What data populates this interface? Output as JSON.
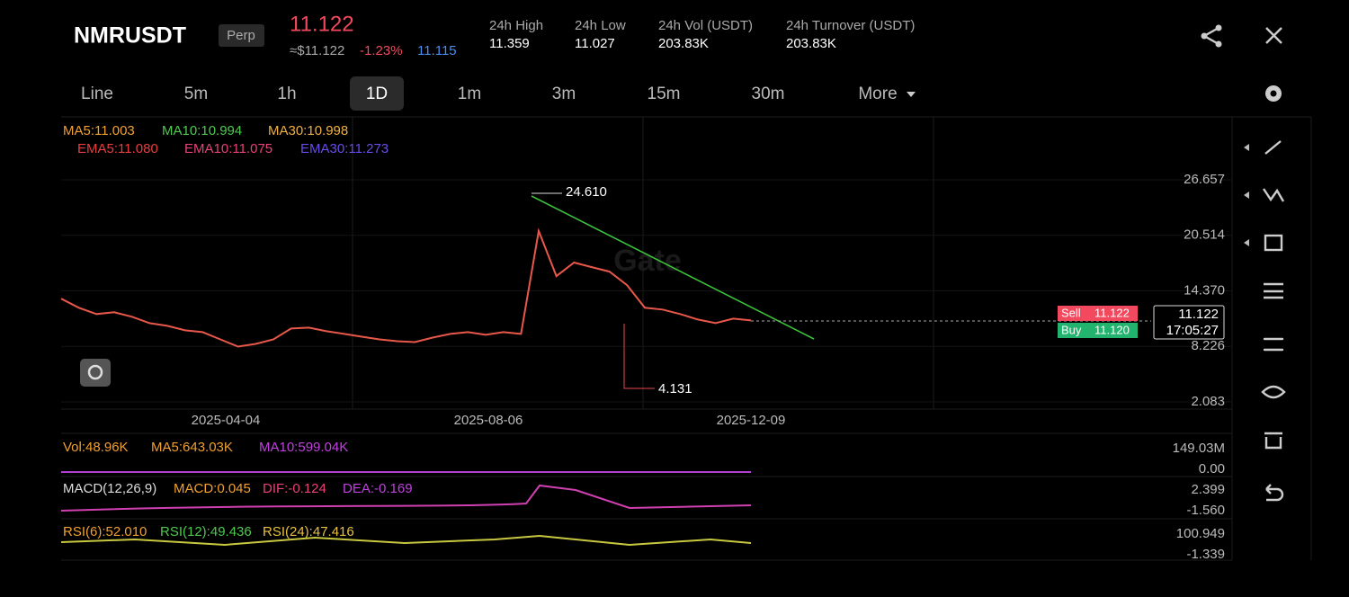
{
  "header": {
    "symbol": "NMRUSDT",
    "badge": "Perp",
    "last_price": "11.122",
    "approx": "≈$11.122",
    "change": "-1.23%",
    "mark_price": "11.115",
    "stats": [
      {
        "label": "24h High",
        "value": "11.359"
      },
      {
        "label": "24h Low",
        "value": "11.027"
      },
      {
        "label": "24h Vol (USDT)",
        "value": "203.83K"
      },
      {
        "label": "24h Turnover (USDT)",
        "value": "203.83K"
      }
    ]
  },
  "timeframes": [
    "Line",
    "5m",
    "1h",
    "1D",
    "1m",
    "3m",
    "15m",
    "30m",
    "More"
  ],
  "indicators": {
    "ma": [
      "MA5:11.003",
      "MA10:10.994",
      "MA30:10.998"
    ],
    "ema": [
      "EMA5:11.080",
      "EMA10:11.075",
      "EMA30:11.273"
    ]
  },
  "chart": {
    "yticks": [
      26.657,
      20.514,
      {
        "value": 14.37,
        "label": "14.370"
      },
      8.226,
      2.083
    ],
    "xlabels": [
      "2025-04-04",
      "2025-08-06",
      "2025-12-09"
    ],
    "high": "24.610",
    "low": "4.131",
    "watermark": "Gate",
    "close": [
      13.5,
      12.5,
      11.8,
      12,
      11.5,
      10.8,
      10.5,
      10,
      9.8,
      9,
      8.2,
      8.5,
      9,
      10.2,
      10.3,
      9.9,
      9.6,
      9.3,
      9,
      8.8,
      8.7,
      9.2,
      9.6,
      9.8,
      9.5,
      9.8,
      9.6,
      21,
      16,
      17.5,
      17,
      16.5,
      15,
      12.5,
      12.3,
      11.8,
      11.2,
      10.8,
      11.3,
      11.1
    ],
    "sell": {
      "label": "Sell",
      "price": "11.122"
    },
    "buy": {
      "label": "Buy",
      "price": "11.120"
    },
    "current": "11.122",
    "countdown": "17:05:27"
  },
  "panels": {
    "vol": {
      "labels": [
        "Vol:48.96K",
        "MA5:643.03K",
        "MA10:599.04K"
      ],
      "axis": [
        "149.03M",
        "0.00"
      ]
    },
    "macd": {
      "labels": [
        "MACD(12,26,9)",
        "MACD:0.045",
        "DIF:-0.124",
        "DEA:-0.169"
      ],
      "axis": [
        "2.399",
        "-1.560"
      ]
    },
    "rsi": {
      "labels": [
        "RSI(6):52.010",
        "RSI(12):49.436",
        "RSI(24):47.416"
      ],
      "axis": [
        "100.949",
        "-1.339"
      ]
    }
  }
}
